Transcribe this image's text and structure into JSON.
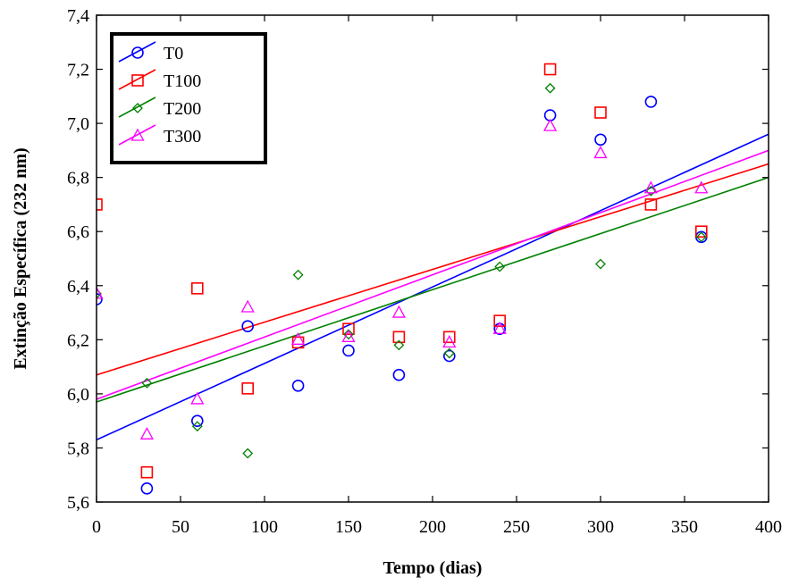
{
  "chart_data": {
    "type": "scatter",
    "xlabel": "Tempo (dias)",
    "ylabel": "Extinção Específica (232 nm)",
    "xlim": [
      0,
      400
    ],
    "ylim": [
      5.6,
      7.4
    ],
    "xticks": [
      0,
      50,
      100,
      150,
      200,
      250,
      300,
      350,
      400
    ],
    "xtick_labels": [
      "0",
      "50",
      "100",
      "150",
      "200",
      "250",
      "300",
      "350",
      "400"
    ],
    "yticks": [
      5.6,
      5.8,
      6.0,
      6.2,
      6.4,
      6.6,
      6.8,
      7.0,
      7.2,
      7.4
    ],
    "ytick_labels": [
      "5,6",
      "5,8",
      "6,0",
      "6,2",
      "6,4",
      "6,6",
      "6,8",
      "7,0",
      "7,2",
      "7,4"
    ],
    "grid": false,
    "legend_position": "top-left",
    "series": [
      {
        "name": "T0",
        "color": "#0000ff",
        "marker": "circle",
        "points": [
          [
            0,
            6.35
          ],
          [
            30,
            5.65
          ],
          [
            60,
            5.9
          ],
          [
            90,
            6.25
          ],
          [
            120,
            6.03
          ],
          [
            150,
            6.16
          ],
          [
            180,
            6.07
          ],
          [
            210,
            6.14
          ],
          [
            240,
            6.24
          ],
          [
            270,
            7.03
          ],
          [
            300,
            6.94
          ],
          [
            330,
            7.08
          ],
          [
            360,
            6.58
          ]
        ],
        "fit": [
          [
            0,
            5.83
          ],
          [
            400,
            6.96
          ]
        ]
      },
      {
        "name": "T100",
        "color": "#ff0000",
        "marker": "square",
        "points": [
          [
            0,
            6.7
          ],
          [
            30,
            5.71
          ],
          [
            60,
            6.39
          ],
          [
            90,
            6.02
          ],
          [
            120,
            6.19
          ],
          [
            150,
            6.24
          ],
          [
            180,
            6.21
          ],
          [
            210,
            6.21
          ],
          [
            240,
            6.27
          ],
          [
            270,
            7.2
          ],
          [
            300,
            7.04
          ],
          [
            330,
            6.7
          ],
          [
            360,
            6.6
          ]
        ],
        "fit": [
          [
            0,
            6.07
          ],
          [
            400,
            6.85
          ]
        ]
      },
      {
        "name": "T200",
        "color": "#008000",
        "marker": "diamond",
        "points": [
          [
            0,
            6.37
          ],
          [
            30,
            6.04
          ],
          [
            60,
            5.88
          ],
          [
            90,
            5.78
          ],
          [
            120,
            6.44
          ],
          [
            150,
            6.22
          ],
          [
            180,
            6.18
          ],
          [
            210,
            6.15
          ],
          [
            240,
            6.47
          ],
          [
            270,
            7.13
          ],
          [
            300,
            6.48
          ],
          [
            330,
            6.75
          ],
          [
            360,
            6.58
          ]
        ],
        "fit": [
          [
            0,
            5.97
          ],
          [
            400,
            6.8
          ]
        ]
      },
      {
        "name": "T300",
        "color": "#ff00ff",
        "marker": "triangle",
        "points": [
          [
            0,
            6.37
          ],
          [
            30,
            5.85
          ],
          [
            60,
            5.98
          ],
          [
            90,
            6.32
          ],
          [
            120,
            6.2
          ],
          [
            150,
            6.21
          ],
          [
            180,
            6.3
          ],
          [
            210,
            6.19
          ],
          [
            240,
            6.24
          ],
          [
            270,
            6.99
          ],
          [
            300,
            6.89
          ],
          [
            330,
            6.76
          ],
          [
            360,
            6.76
          ]
        ],
        "fit": [
          [
            0,
            5.98
          ],
          [
            400,
            6.9
          ]
        ]
      }
    ]
  }
}
